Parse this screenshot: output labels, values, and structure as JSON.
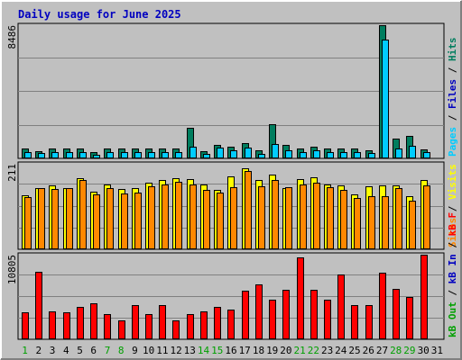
{
  "chart_data": {
    "type": "bar",
    "title": "Daily usage for June 2025",
    "categories": [
      "1",
      "2",
      "3",
      "4",
      "5",
      "6",
      "7",
      "8",
      "9",
      "10",
      "11",
      "12",
      "13",
      "14",
      "15",
      "16",
      "17",
      "18",
      "19",
      "20",
      "21",
      "22",
      "23",
      "24",
      "25",
      "26",
      "27",
      "28",
      "29",
      "30",
      "31"
    ],
    "weekend_days": [
      "1",
      "7",
      "8",
      "14",
      "15",
      "21",
      "22",
      "28",
      "29"
    ],
    "colors": {
      "background": "#C0C0C0",
      "title": "#0000C0",
      "hits": "#007D5E",
      "files": "#00CCFF",
      "pages": "#00CCFF",
      "visits": "#FFFF00",
      "sites": "#FF8800",
      "kbytes": "#FF0000",
      "weekend": "#00A000"
    },
    "panels": [
      {
        "id": "top",
        "ylabel_max": "8486",
        "ymax": 8486,
        "legend": [
          {
            "text": "Hits",
            "color": "#007D5E"
          },
          {
            "text": "Files",
            "color": "#0000C0"
          },
          {
            "text": "Pages",
            "color": "#00CCFF"
          }
        ],
        "series": [
          {
            "key": "hits",
            "color": "#007D5E",
            "values": [
              650,
              470,
              610,
              610,
              650,
              420,
              610,
              610,
              610,
              650,
              610,
              610,
              1970,
              480,
              850,
              730,
              1000,
              540,
              2160,
              850,
              650,
              730,
              610,
              650,
              610,
              540,
              8486,
              1290,
              1420,
              560,
              0
            ]
          },
          {
            "key": "files",
            "color": "#00CCFF",
            "values": [
              430,
              330,
              430,
              400,
              400,
              250,
              400,
              430,
              400,
              400,
              400,
              430,
              730,
              280,
              670,
              500,
              710,
              280,
              890,
              500,
              400,
              530,
              380,
              430,
              400,
              360,
              7570,
              620,
              790,
              420,
              0
            ]
          }
        ]
      },
      {
        "id": "middle",
        "ylabel_max": "211",
        "ymax": 211,
        "legend": [
          {
            "text": "Visits",
            "color": "#FFFF00"
          },
          {
            "text": "Sites",
            "color": "#FF8800"
          }
        ],
        "series": [
          {
            "key": "visits",
            "color": "#FFFF00",
            "values": [
              133,
              151,
              158,
              151,
              176,
              142,
              159,
              148,
              150,
              165,
              170,
              175,
              174,
              160,
              146,
              179,
              201,
              170,
              185,
              150,
              173,
              178,
              161,
              158,
              135,
              156,
              157,
              158,
              132,
              170,
              0
            ]
          },
          {
            "key": "sites",
            "color": "#FF8800",
            "values": [
              128,
              151,
              148,
              151,
              170,
              135,
              150,
              137,
              140,
              155,
              161,
              166,
              160,
              147,
              139,
              153,
              193,
              155,
              170,
              154,
              160,
              164,
              154,
              147,
              127,
              131,
              131,
              150,
              121,
              158,
              0
            ]
          }
        ]
      },
      {
        "id": "bottom",
        "ylabel_max": "10805",
        "ymax": 10805,
        "legend": [
          {
            "text": "kB F",
            "color": "#FF0000"
          },
          {
            "text": "kB In",
            "color": "#0000C0"
          },
          {
            "text": "kB Out",
            "color": "#00A000"
          }
        ],
        "series": [
          {
            "key": "kbytes",
            "color": "#FF0000",
            "values": [
              3400,
              8660,
              3520,
              3400,
              4140,
              4640,
              3170,
              2450,
              4330,
              3170,
              4330,
              2450,
              3170,
              3520,
              4140,
              3770,
              6170,
              7050,
              5100,
              6290,
              10460,
              6290,
              5100,
              8290,
              4390,
              4390,
              8540,
              6420,
              5350,
              10805,
              0
            ]
          }
        ]
      }
    ]
  }
}
